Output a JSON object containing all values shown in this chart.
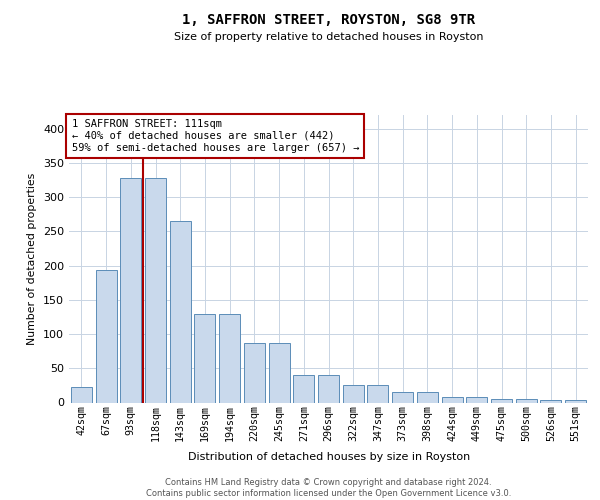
{
  "title": "1, SAFFRON STREET, ROYSTON, SG8 9TR",
  "subtitle": "Size of property relative to detached houses in Royston",
  "xlabel": "Distribution of detached houses by size in Royston",
  "ylabel": "Number of detached properties",
  "categories": [
    "42sqm",
    "67sqm",
    "93sqm",
    "118sqm",
    "143sqm",
    "169sqm",
    "194sqm",
    "220sqm",
    "245sqm",
    "271sqm",
    "296sqm",
    "322sqm",
    "347sqm",
    "373sqm",
    "398sqm",
    "424sqm",
    "449sqm",
    "475sqm",
    "500sqm",
    "526sqm",
    "551sqm"
  ],
  "bar_heights": [
    23,
    193,
    328,
    328,
    265,
    130,
    130,
    87,
    87,
    40,
    40,
    26,
    26,
    15,
    15,
    8,
    8,
    5,
    5,
    3,
    3
  ],
  "bar_color": "#c9d9ec",
  "bar_edge_color": "#5b8db8",
  "grid_color": "#c8d4e3",
  "red_color": "#aa0000",
  "ann_line1": "1 SAFFRON STREET: 111sqm",
  "ann_line2": "← 40% of detached houses are smaller (442)",
  "ann_line3": "59% of semi-detached houses are larger (657) →",
  "footer_line1": "Contains HM Land Registry data © Crown copyright and database right 2024.",
  "footer_line2": "Contains public sector information licensed under the Open Government Licence v3.0.",
  "red_line_x": 2.5,
  "ylim": [
    0,
    420
  ],
  "yticks": [
    0,
    50,
    100,
    150,
    200,
    250,
    300,
    350,
    400
  ]
}
